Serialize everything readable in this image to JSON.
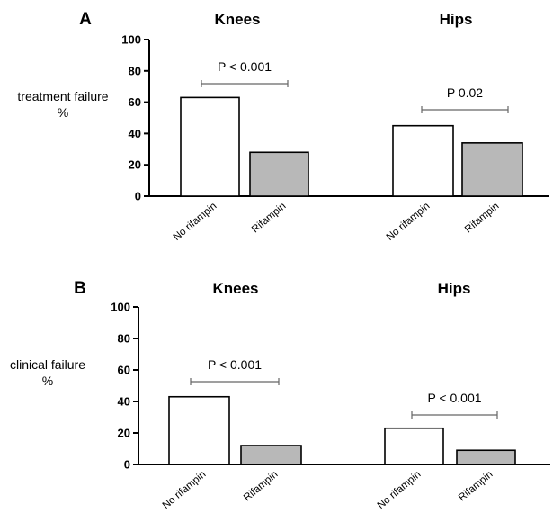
{
  "chart_data": [
    {
      "type": "bar",
      "panel": "A",
      "ylabel": "treatment failure\n%",
      "ylim": [
        0,
        100
      ],
      "yticks": [
        0,
        20,
        40,
        60,
        80,
        100
      ],
      "groups": [
        {
          "title": "Knees",
          "categories": [
            "No rifampin",
            "Rifampin"
          ],
          "values": [
            63,
            28
          ],
          "p_value": "P < 0.001"
        },
        {
          "title": "Hips",
          "categories": [
            "No rifampin",
            "Rifampin"
          ],
          "values": [
            45,
            34
          ],
          "p_value": "P 0.02"
        }
      ]
    },
    {
      "type": "bar",
      "panel": "B",
      "ylabel": "clinical failure\n%",
      "ylim": [
        0,
        100
      ],
      "yticks": [
        0,
        20,
        40,
        60,
        80,
        100
      ],
      "groups": [
        {
          "title": "Knees",
          "categories": [
            "No rifampin",
            "Rifampin"
          ],
          "values": [
            43,
            12
          ],
          "p_value": "P < 0.001"
        },
        {
          "title": "Hips",
          "categories": [
            "No rifampin",
            "Rifampin"
          ],
          "values": [
            23,
            9
          ],
          "p_value": "P < 0.001"
        }
      ]
    }
  ],
  "colors": {
    "no_rifampin": "#ffffff",
    "rifampin": "#b8b8b8",
    "bracket": "#666666"
  }
}
